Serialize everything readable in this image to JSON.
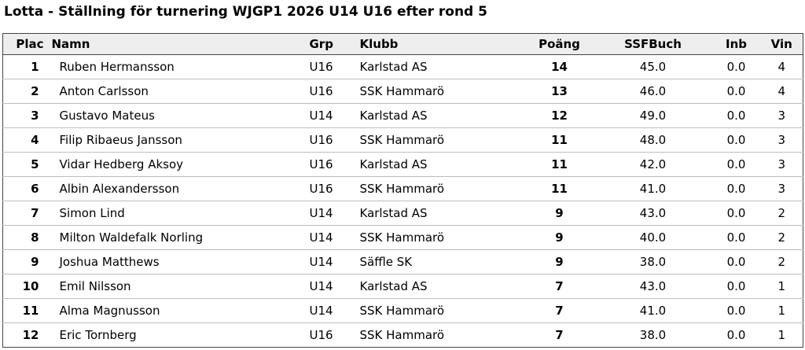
{
  "title": "Lotta - Ställning för turnering WJGP1 2026 U14 U16 efter rond 5",
  "colors": {
    "background": "#ffffff",
    "text": "#000000",
    "header_bg": "#eeeeee",
    "table_border": "#444444",
    "row_divider": "#bdbdbd"
  },
  "table": {
    "headers": {
      "plac": "Plac",
      "namn": "Namn",
      "grp": "Grp",
      "klubb": "Klubb",
      "poang": "Poäng",
      "ssfbuch": "SSFBuch",
      "inb": "Inb",
      "vin": "Vin"
    },
    "rows": [
      {
        "plac": "1",
        "namn": "Ruben Hermansson",
        "grp": "U16",
        "klubb": "Karlstad AS",
        "poang": "14",
        "ssfbuch": "45.0",
        "inb": "0.0",
        "vin": "4"
      },
      {
        "plac": "2",
        "namn": "Anton Carlsson",
        "grp": "U16",
        "klubb": "SSK Hammarö",
        "poang": "13",
        "ssfbuch": "46.0",
        "inb": "0.0",
        "vin": "4"
      },
      {
        "plac": "3",
        "namn": "Gustavo Mateus",
        "grp": "U14",
        "klubb": "Karlstad AS",
        "poang": "12",
        "ssfbuch": "49.0",
        "inb": "0.0",
        "vin": "3"
      },
      {
        "plac": "4",
        "namn": "Filip Ribaeus Jansson",
        "grp": "U16",
        "klubb": "SSK Hammarö",
        "poang": "11",
        "ssfbuch": "48.0",
        "inb": "0.0",
        "vin": "3"
      },
      {
        "plac": "5",
        "namn": "Vidar Hedberg Aksoy",
        "grp": "U16",
        "klubb": "Karlstad AS",
        "poang": "11",
        "ssfbuch": "42.0",
        "inb": "0.0",
        "vin": "3"
      },
      {
        "plac": "6",
        "namn": "Albin Alexandersson",
        "grp": "U16",
        "klubb": "SSK Hammarö",
        "poang": "11",
        "ssfbuch": "41.0",
        "inb": "0.0",
        "vin": "3"
      },
      {
        "plac": "7",
        "namn": "Simon Lind",
        "grp": "U14",
        "klubb": "Karlstad AS",
        "poang": "9",
        "ssfbuch": "43.0",
        "inb": "0.0",
        "vin": "2"
      },
      {
        "plac": "8",
        "namn": "Milton Waldefalk Norling",
        "grp": "U14",
        "klubb": "SSK Hammarö",
        "poang": "9",
        "ssfbuch": "40.0",
        "inb": "0.0",
        "vin": "2"
      },
      {
        "plac": "9",
        "namn": "Joshua Matthews",
        "grp": "U14",
        "klubb": "Säffle SK",
        "poang": "9",
        "ssfbuch": "38.0",
        "inb": "0.0",
        "vin": "2"
      },
      {
        "plac": "10",
        "namn": "Emil Nilsson",
        "grp": "U14",
        "klubb": "Karlstad AS",
        "poang": "7",
        "ssfbuch": "43.0",
        "inb": "0.0",
        "vin": "1"
      },
      {
        "plac": "11",
        "namn": "Alma Magnusson",
        "grp": "U14",
        "klubb": "SSK Hammarö",
        "poang": "7",
        "ssfbuch": "41.0",
        "inb": "0.0",
        "vin": "1"
      },
      {
        "plac": "12",
        "namn": "Eric Tornberg",
        "grp": "U16",
        "klubb": "SSK Hammarö",
        "poang": "7",
        "ssfbuch": "38.0",
        "inb": "0.0",
        "vin": "1"
      }
    ]
  }
}
